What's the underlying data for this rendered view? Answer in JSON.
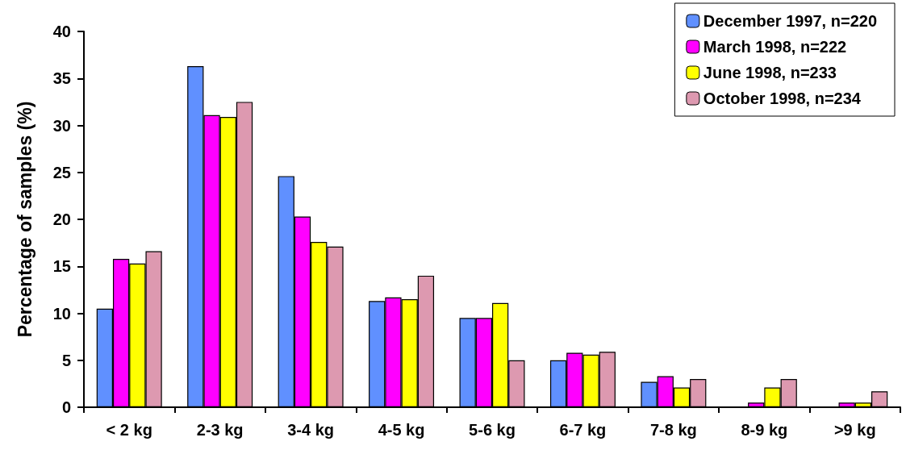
{
  "chart_data": {
    "type": "bar",
    "ylabel": "Percentage of samples (%)",
    "categories": [
      "< 2 kg",
      "2-3 kg",
      "3-4 kg",
      "4-5 kg",
      "5-6 kg",
      "6-7 kg",
      "7-8 kg",
      "8-9 kg",
      ">9 kg"
    ],
    "series": [
      {
        "name": "December 1997, n=220",
        "color": "#6090ff",
        "values": [
          10.5,
          36.3,
          24.6,
          11.3,
          9.5,
          5.0,
          2.7,
          0,
          0
        ]
      },
      {
        "name": "March 1998, n=222",
        "color": "#ff00ff",
        "values": [
          15.8,
          31.1,
          20.3,
          11.7,
          9.5,
          5.8,
          3.3,
          0.5,
          0.5
        ]
      },
      {
        "name": "June 1998, n=233",
        "color": "#ffff00",
        "values": [
          15.3,
          30.9,
          17.6,
          11.5,
          11.1,
          5.6,
          2.1,
          2.1,
          0.5
        ]
      },
      {
        "name": "October 1998, n=234",
        "color": "#dd99b0",
        "values": [
          16.6,
          32.5,
          17.1,
          14.0,
          5.0,
          5.9,
          3.0,
          3.0,
          1.7
        ]
      }
    ],
    "ylim": [
      0,
      40
    ],
    "yticks": [
      0,
      5,
      10,
      15,
      20,
      25,
      30,
      35,
      40
    ],
    "grid": false,
    "legend": "top right"
  }
}
